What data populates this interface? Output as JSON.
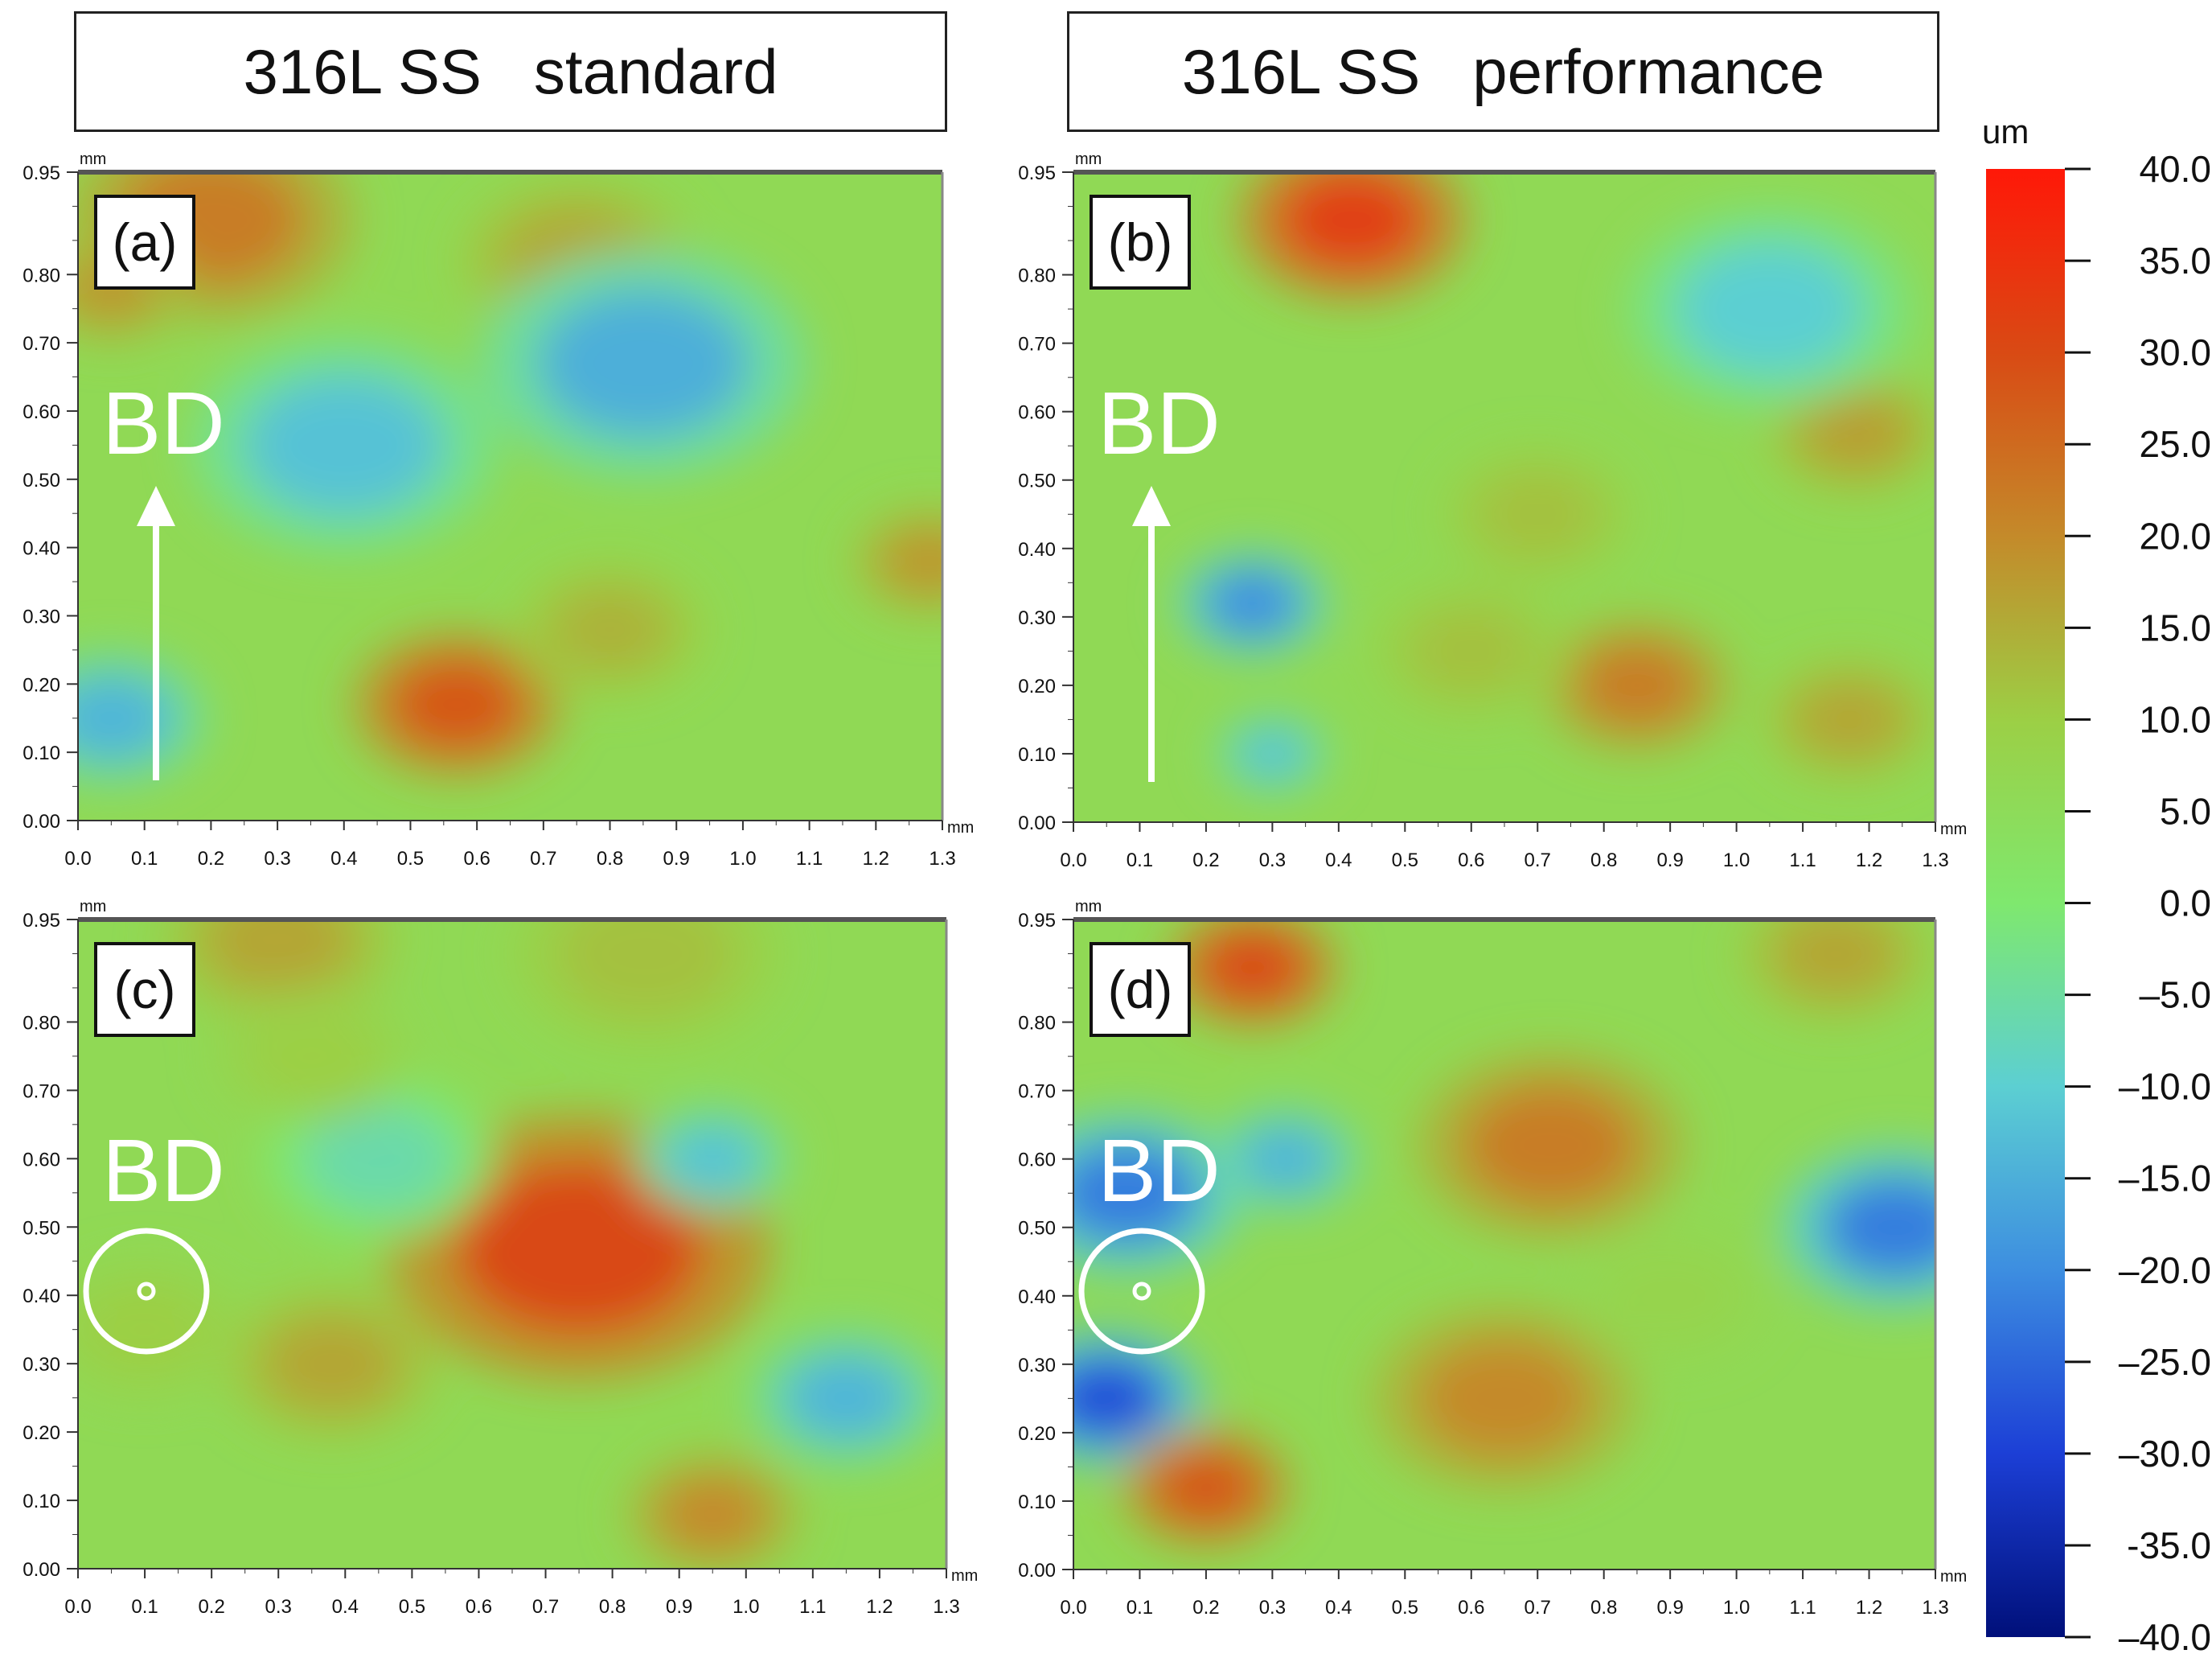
{
  "headers": {
    "left": "316L SS   standard",
    "right": "316L SS   performance"
  },
  "colorbar": {
    "unit": "um",
    "min": -40,
    "max": 40,
    "ticks": [
      "40.0",
      "35.0",
      "30.0",
      "25.0",
      "20.0",
      "15.0",
      "10.0",
      "5.0",
      "0.0",
      "–5.0",
      "–10.0",
      "–15.0",
      "–20.0",
      "–25.0",
      "–30.0",
      "-35.0",
      "–40.0"
    ],
    "colors": [
      "#00107a",
      "#1c3fd6",
      "#3d8ee0",
      "#5ccfd2",
      "#7fe86e",
      "#9ccf45",
      "#c48a2a",
      "#d94a14",
      "#ff1808"
    ]
  },
  "axis": {
    "x_ticks": [
      "0.0",
      "0.1",
      "0.2",
      "0.3",
      "0.4",
      "0.5",
      "0.6",
      "0.7",
      "0.8",
      "0.9",
      "1.0",
      "1.1",
      "1.2",
      "1.3"
    ],
    "y_ticks": [
      "0.95",
      "0.80",
      "0.70",
      "0.60",
      "0.50",
      "0.40",
      "0.30",
      "0.20",
      "0.10",
      "0.00"
    ],
    "x_unit": "mm",
    "y_unit": "mm"
  },
  "chart_data": [
    {
      "type": "heatmap",
      "panel": "(a)",
      "title": "316L SS standard",
      "marker": "BD",
      "direction": "arrow-up",
      "xlabel": "mm",
      "ylabel": "mm",
      "xlim": [
        0,
        1.3
      ],
      "ylim": [
        0,
        0.95
      ],
      "zlim": [
        -40,
        40
      ],
      "zunit": "um",
      "features": [
        {
          "x": 0.2,
          "y": 0.88,
          "z": 22,
          "r": 0.15
        },
        {
          "x": 0.75,
          "y": 0.82,
          "z": 16,
          "r": 0.12
        },
        {
          "x": 0.85,
          "y": 0.67,
          "z": -15,
          "r": 0.17
        },
        {
          "x": 0.4,
          "y": 0.55,
          "z": -12,
          "r": 0.16
        },
        {
          "x": 0.57,
          "y": 0.17,
          "z": 28,
          "r": 0.11
        },
        {
          "x": 0.8,
          "y": 0.28,
          "z": 14,
          "r": 0.1
        },
        {
          "x": 0.05,
          "y": 0.15,
          "z": -14,
          "r": 0.1
        },
        {
          "x": 1.28,
          "y": 0.38,
          "z": 18,
          "r": 0.08
        },
        {
          "x": 0.05,
          "y": 0.78,
          "z": 18,
          "r": 0.08
        }
      ]
    },
    {
      "type": "heatmap",
      "panel": "(b)",
      "title": "316L SS performance",
      "marker": "BD",
      "direction": "arrow-up",
      "xlabel": "mm",
      "ylabel": "mm",
      "xlim": [
        0,
        1.3
      ],
      "ylim": [
        0,
        0.95
      ],
      "zlim": [
        -40,
        40
      ],
      "zunit": "um",
      "features": [
        {
          "x": 0.42,
          "y": 0.88,
          "z": 32,
          "r": 0.12
        },
        {
          "x": 0.27,
          "y": 0.32,
          "z": -20,
          "r": 0.08
        },
        {
          "x": 0.85,
          "y": 0.2,
          "z": 22,
          "r": 0.1
        },
        {
          "x": 1.17,
          "y": 0.15,
          "z": 16,
          "r": 0.09
        },
        {
          "x": 1.18,
          "y": 0.57,
          "z": 17,
          "r": 0.09
        },
        {
          "x": 1.05,
          "y": 0.75,
          "z": -10,
          "r": 0.15
        },
        {
          "x": 0.3,
          "y": 0.1,
          "z": -12,
          "r": 0.06
        },
        {
          "x": 0.6,
          "y": 0.25,
          "z": 12,
          "r": 0.1
        },
        {
          "x": 0.7,
          "y": 0.45,
          "z": 12,
          "r": 0.1
        }
      ]
    },
    {
      "type": "heatmap",
      "panel": "(c)",
      "title": "316L SS standard",
      "marker": "BD",
      "direction": "out-of-plane",
      "xlabel": "mm",
      "ylabel": "mm",
      "xlim": [
        0,
        1.3
      ],
      "ylim": [
        0,
        0.95
      ],
      "zlim": [
        -40,
        40
      ],
      "zunit": "um",
      "features": [
        {
          "x": 0.75,
          "y": 0.47,
          "z": 30,
          "r": 0.2
        },
        {
          "x": 0.3,
          "y": 0.92,
          "z": 16,
          "r": 0.12
        },
        {
          "x": 0.85,
          "y": 0.9,
          "z": 12,
          "r": 0.14
        },
        {
          "x": 0.38,
          "y": 0.3,
          "z": 16,
          "r": 0.11
        },
        {
          "x": 0.95,
          "y": 0.08,
          "z": 20,
          "r": 0.09
        },
        {
          "x": 1.15,
          "y": 0.25,
          "z": -14,
          "r": 0.1
        },
        {
          "x": 0.95,
          "y": 0.6,
          "z": -12,
          "r": 0.08
        },
        {
          "x": 0.45,
          "y": 0.6,
          "z": -6,
          "r": 0.12
        },
        {
          "x": 0.1,
          "y": 0.35,
          "z": 10,
          "r": 0.1
        },
        {
          "x": 0.35,
          "y": 0.75,
          "z": 10,
          "r": 0.1
        }
      ]
    },
    {
      "type": "heatmap",
      "panel": "(d)",
      "title": "316L SS performance",
      "marker": "BD",
      "direction": "out-of-plane",
      "xlabel": "mm",
      "ylabel": "mm",
      "xlim": [
        0,
        1.3
      ],
      "ylim": [
        0,
        0.95
      ],
      "zlim": [
        -40,
        40
      ],
      "zunit": "um",
      "features": [
        {
          "x": 0.05,
          "y": 0.25,
          "z": -28,
          "r": 0.1
        },
        {
          "x": 0.08,
          "y": 0.55,
          "z": -22,
          "r": 0.12
        },
        {
          "x": 0.27,
          "y": 0.88,
          "z": 30,
          "r": 0.09
        },
        {
          "x": 0.2,
          "y": 0.12,
          "z": 28,
          "r": 0.09
        },
        {
          "x": 0.72,
          "y": 0.62,
          "z": 22,
          "r": 0.14
        },
        {
          "x": 0.65,
          "y": 0.25,
          "z": 20,
          "r": 0.14
        },
        {
          "x": 1.24,
          "y": 0.5,
          "z": -22,
          "r": 0.12
        },
        {
          "x": 1.15,
          "y": 0.9,
          "z": 16,
          "r": 0.1
        },
        {
          "x": 0.32,
          "y": 0.6,
          "z": -14,
          "r": 0.08
        },
        {
          "x": 0.9,
          "y": 0.4,
          "z": 8,
          "r": 0.1
        }
      ]
    }
  ]
}
